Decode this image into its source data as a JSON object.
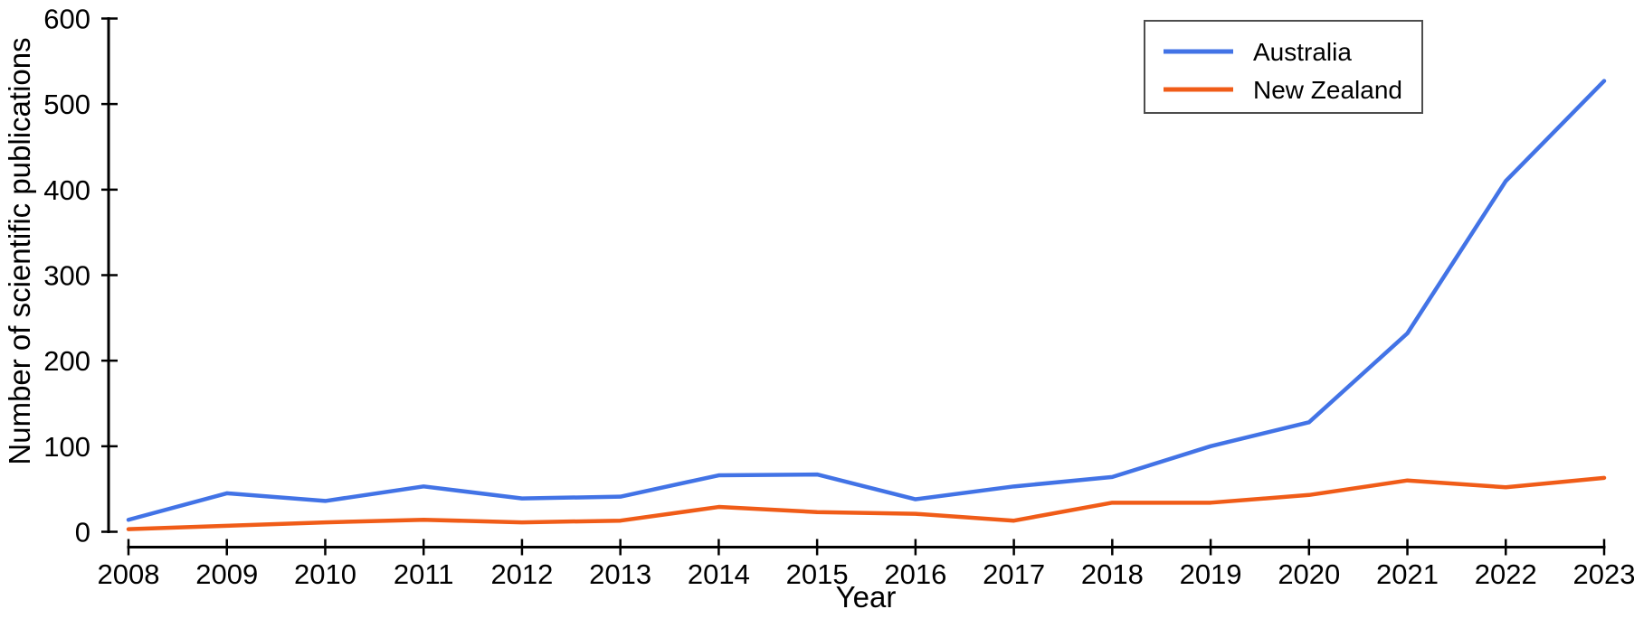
{
  "chart_data": {
    "type": "line",
    "title": "",
    "xlabel": "Year",
    "ylabel": "Number of scientific publications",
    "x": [
      2008,
      2009,
      2010,
      2011,
      2012,
      2013,
      2014,
      2015,
      2016,
      2017,
      2018,
      2019,
      2020,
      2021,
      2022,
      2023
    ],
    "series": [
      {
        "name": "Australia",
        "color": "#4273e6",
        "values": [
          14,
          45,
          36,
          53,
          39,
          41,
          66,
          67,
          38,
          53,
          64,
          100,
          128,
          232,
          410,
          527
        ]
      },
      {
        "name": "New Zealand",
        "color": "#f05c18",
        "values": [
          3,
          7,
          11,
          14,
          11,
          13,
          29,
          23,
          21,
          13,
          34,
          34,
          43,
          60,
          52,
          63
        ]
      }
    ],
    "ylim": [
      0,
      600
    ],
    "yticks": [
      0,
      100,
      200,
      300,
      400,
      500,
      600
    ],
    "xticks": [
      2008,
      2009,
      2010,
      2011,
      2012,
      2013,
      2014,
      2015,
      2016,
      2017,
      2018,
      2019,
      2020,
      2021,
      2022,
      2023
    ],
    "grid": false,
    "legend_position": "upper right",
    "axis_color": "#000000",
    "legend_border_color": "#4d4d4d"
  }
}
